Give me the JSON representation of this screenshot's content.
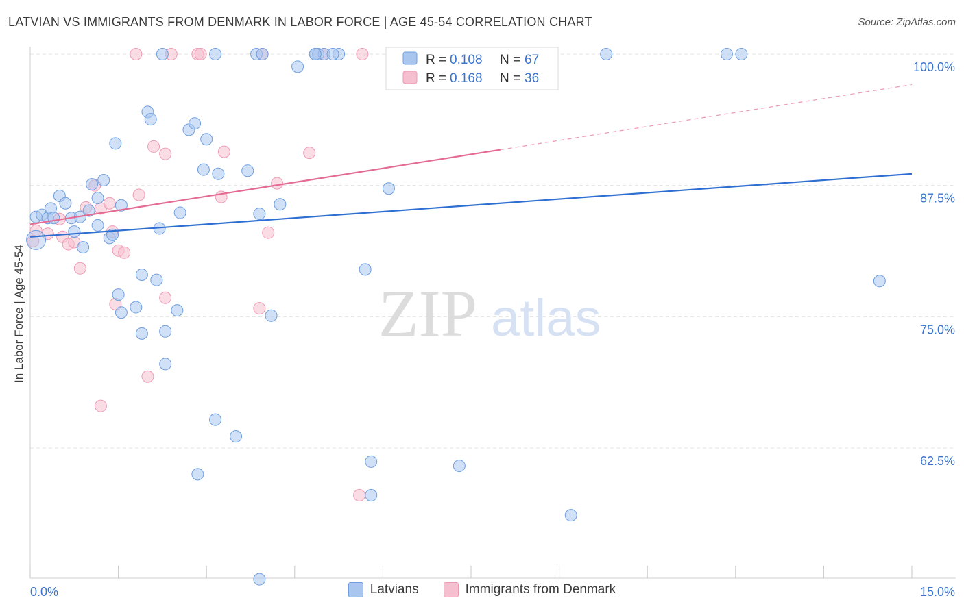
{
  "title": "LATVIAN VS IMMIGRANTS FROM DENMARK IN LABOR FORCE | AGE 45-54 CORRELATION CHART",
  "source": "Source: ZipAtlas.com",
  "watermark": {
    "zip": "ZIP",
    "atlas": "atlas"
  },
  "legend": {
    "latvians": {
      "r_label": "R =",
      "r_value": "0.108",
      "n_label": "N =",
      "n_value": "67"
    },
    "denmark": {
      "r_label": "R =",
      "r_value": "0.168",
      "n_label": "N =",
      "n_value": "36"
    }
  },
  "colors": {
    "latvians_fill": "#a9c6ee",
    "latvians_stroke": "#6f9fe0",
    "latvians_line": "#2f6fd1",
    "denmark_fill": "#f6bfd0",
    "denmark_stroke": "#ef9ab5",
    "denmark_line": "#e46b94",
    "value_text": "#3a74cc"
  },
  "chart_data": {
    "type": "scatter",
    "title": "LATVIAN VS IMMIGRANTS FROM DENMARK IN LABOR FORCE | AGE 45-54 CORRELATION CHART",
    "xlabel": "",
    "ylabel": "In Labor Force | Age 45-54",
    "xlim": [
      0,
      15
    ],
    "ylim": [
      50.0,
      101.0
    ],
    "x_ticks": [
      "0.0%",
      "15.0%"
    ],
    "y_ticks": [
      {
        "value": 100.0,
        "label": "100.0%"
      },
      {
        "value": 87.5,
        "label": "87.5%"
      },
      {
        "value": 75.0,
        "label": "75.0%"
      },
      {
        "value": 62.5,
        "label": "62.5%"
      }
    ],
    "grid": true,
    "legend_position": "top-center",
    "series": [
      {
        "name": "Latvians",
        "r": 0.108,
        "n": 67,
        "points": [
          [
            0.1,
            84.5
          ],
          [
            0.2,
            84.7
          ],
          [
            0.3,
            84.4
          ],
          [
            0.35,
            85.3
          ],
          [
            0.4,
            84.4
          ],
          [
            0.5,
            86.5
          ],
          [
            0.6,
            85.8
          ],
          [
            0.7,
            84.4
          ],
          [
            0.75,
            83.1
          ],
          [
            0.85,
            84.5
          ],
          [
            0.9,
            81.6
          ],
          [
            1.0,
            85.1
          ],
          [
            1.05,
            87.6
          ],
          [
            1.15,
            86.3
          ],
          [
            1.25,
            88.0
          ],
          [
            1.15,
            83.7
          ],
          [
            1.35,
            82.5
          ],
          [
            1.4,
            82.8
          ],
          [
            1.55,
            85.6
          ],
          [
            1.45,
            91.5
          ],
          [
            1.5,
            77.1
          ],
          [
            1.55,
            75.4
          ],
          [
            1.8,
            75.9
          ],
          [
            1.9,
            73.4
          ],
          [
            1.9,
            79.0
          ],
          [
            2.0,
            94.5
          ],
          [
            2.05,
            93.8
          ],
          [
            2.15,
            78.5
          ],
          [
            2.2,
            83.4
          ],
          [
            2.3,
            73.6
          ],
          [
            2.3,
            70.5
          ],
          [
            2.5,
            75.6
          ],
          [
            2.55,
            84.9
          ],
          [
            2.7,
            92.8
          ],
          [
            2.8,
            93.4
          ],
          [
            2.95,
            89.0
          ],
          [
            3.0,
            91.9
          ],
          [
            2.85,
            60.0
          ],
          [
            3.2,
            88.6
          ],
          [
            3.15,
            65.2
          ],
          [
            3.5,
            63.6
          ],
          [
            3.7,
            88.9
          ],
          [
            3.9,
            84.8
          ],
          [
            4.1,
            75.1
          ],
          [
            4.25,
            85.7
          ],
          [
            4.55,
            98.8
          ],
          [
            4.85,
            100.0
          ],
          [
            4.9,
            100.0
          ],
          [
            5.0,
            100.0
          ],
          [
            5.25,
            100.0
          ],
          [
            5.8,
            58.0
          ],
          [
            5.7,
            79.5
          ],
          [
            5.8,
            61.2
          ],
          [
            6.1,
            87.2
          ],
          [
            7.3,
            60.8
          ],
          [
            9.2,
            56.1
          ],
          [
            9.8,
            100.0
          ],
          [
            11.85,
            100.0
          ],
          [
            12.1,
            100.0
          ],
          [
            14.45,
            78.4
          ],
          [
            3.15,
            100.0
          ],
          [
            3.85,
            100.0
          ],
          [
            3.95,
            100.0
          ],
          [
            4.85,
            100.0
          ],
          [
            5.15,
            100.0
          ],
          [
            2.25,
            100.0
          ],
          [
            3.9,
            50.0
          ]
        ],
        "trend": {
          "x0": 0,
          "y0": 82.6,
          "x1": 15,
          "y1": 88.6
        }
      },
      {
        "name": "Immigrants from Denmark",
        "r": 0.168,
        "n": 36,
        "points": [
          [
            0.1,
            83.2
          ],
          [
            0.3,
            82.9
          ],
          [
            0.5,
            84.3
          ],
          [
            0.55,
            82.6
          ],
          [
            0.65,
            81.9
          ],
          [
            0.75,
            82.1
          ],
          [
            0.85,
            79.6
          ],
          [
            0.95,
            85.4
          ],
          [
            1.1,
            87.5
          ],
          [
            1.2,
            85.3
          ],
          [
            1.35,
            85.8
          ],
          [
            1.4,
            83.1
          ],
          [
            1.45,
            76.2
          ],
          [
            1.5,
            81.3
          ],
          [
            1.6,
            81.1
          ],
          [
            1.2,
            66.5
          ],
          [
            1.85,
            86.6
          ],
          [
            2.0,
            69.3
          ],
          [
            2.1,
            91.2
          ],
          [
            2.3,
            76.8
          ],
          [
            2.3,
            90.5
          ],
          [
            2.85,
            100.0
          ],
          [
            2.9,
            100.0
          ],
          [
            3.25,
            86.4
          ],
          [
            3.3,
            90.7
          ],
          [
            3.9,
            75.8
          ],
          [
            4.05,
            83.0
          ],
          [
            4.2,
            87.7
          ],
          [
            4.75,
            90.6
          ],
          [
            5.0,
            100.0
          ],
          [
            5.65,
            100.0
          ],
          [
            5.6,
            58.0
          ],
          [
            1.8,
            100.0
          ],
          [
            2.4,
            100.0
          ],
          [
            3.95,
            100.0
          ],
          [
            0.05,
            82.2
          ]
        ],
        "trend": {
          "x0": 0,
          "y0": 83.8,
          "x1": 8.0,
          "y1": 90.9
        },
        "trend_dashed": {
          "x0": 8.0,
          "y0": 90.9,
          "x1": 15,
          "y1": 97.1
        }
      }
    ]
  },
  "bottom_legend": {
    "latvians": "Latvians",
    "denmark": "Immigrants from Denmark"
  }
}
